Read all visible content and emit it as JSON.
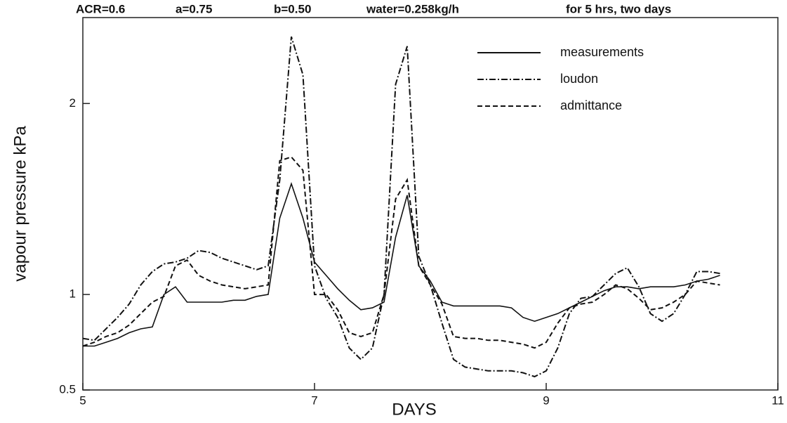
{
  "chart_data": {
    "type": "line",
    "annotations": [
      "ACR=0.6",
      "a=0.75",
      "b=0.50",
      "water=0.258kg/h",
      "for 5 hrs, two days"
    ],
    "xlabel": "DAYS",
    "ylabel": "vapour pressure kPa",
    "xlim": [
      5,
      11
    ],
    "xticks": [
      5,
      7,
      9,
      11
    ],
    "ylim": [
      0.5,
      2.45
    ],
    "yticks": [
      0.5,
      1,
      2
    ],
    "legend": "upper right",
    "x": [
      5.0,
      5.1,
      5.2,
      5.3,
      5.4,
      5.5,
      5.6,
      5.7,
      5.8,
      5.9,
      6.0,
      6.1,
      6.2,
      6.3,
      6.4,
      6.5,
      6.6,
      6.7,
      6.8,
      6.9,
      7.0,
      7.1,
      7.2,
      7.3,
      7.4,
      7.5,
      7.6,
      7.7,
      7.8,
      7.9,
      8.0,
      8.1,
      8.2,
      8.3,
      8.4,
      8.5,
      8.6,
      8.7,
      8.8,
      8.9,
      9.0,
      9.1,
      9.2,
      9.3,
      9.4,
      9.5,
      9.6,
      9.7,
      9.8,
      9.9,
      10.0,
      10.1,
      10.2,
      10.3,
      10.4,
      10.5
    ],
    "series": [
      {
        "name": "measurements",
        "color": "#111111",
        "dash": "solid",
        "values": [
          0.73,
          0.73,
          0.75,
          0.77,
          0.8,
          0.82,
          0.83,
          1.0,
          1.04,
          0.96,
          0.96,
          0.96,
          0.96,
          0.97,
          0.97,
          0.99,
          1.0,
          1.4,
          1.58,
          1.4,
          1.17,
          1.1,
          1.03,
          0.97,
          0.92,
          0.93,
          0.96,
          1.3,
          1.52,
          1.15,
          1.07,
          0.96,
          0.94,
          0.94,
          0.94,
          0.94,
          0.94,
          0.93,
          0.88,
          0.86,
          0.88,
          0.9,
          0.93,
          0.96,
          0.99,
          1.02,
          1.04,
          1.04,
          1.03,
          1.04,
          1.04,
          1.04,
          1.05,
          1.07,
          1.08,
          1.1
        ]
      },
      {
        "name": "loudon",
        "color": "#111111",
        "dash": "dashdot",
        "values": [
          0.77,
          0.76,
          0.82,
          0.88,
          0.95,
          1.05,
          1.12,
          1.16,
          1.17,
          1.19,
          1.23,
          1.22,
          1.19,
          1.17,
          1.15,
          1.13,
          1.15,
          1.6,
          2.35,
          2.15,
          1.15,
          0.98,
          0.88,
          0.72,
          0.66,
          0.72,
          1.0,
          2.1,
          2.3,
          1.2,
          1.05,
          0.85,
          0.66,
          0.62,
          0.61,
          0.6,
          0.6,
          0.6,
          0.59,
          0.57,
          0.6,
          0.72,
          0.9,
          0.98,
          0.99,
          1.05,
          1.11,
          1.14,
          1.04,
          0.9,
          0.86,
          0.9,
          1.0,
          1.12,
          1.12,
          1.11
        ]
      },
      {
        "name": "admittance",
        "color": "#111111",
        "dash": "dashed",
        "values": [
          0.73,
          0.75,
          0.78,
          0.8,
          0.84,
          0.9,
          0.96,
          0.99,
          1.15,
          1.18,
          1.1,
          1.07,
          1.05,
          1.04,
          1.03,
          1.04,
          1.05,
          1.7,
          1.72,
          1.65,
          1.0,
          1.0,
          0.92,
          0.8,
          0.78,
          0.8,
          1.0,
          1.5,
          1.6,
          1.15,
          1.05,
          0.95,
          0.78,
          0.77,
          0.77,
          0.76,
          0.76,
          0.75,
          0.74,
          0.72,
          0.75,
          0.85,
          0.93,
          0.95,
          0.96,
          1.0,
          1.05,
          1.03,
          0.98,
          0.92,
          0.93,
          0.96,
          1.0,
          1.07,
          1.06,
          1.05
        ]
      }
    ]
  }
}
